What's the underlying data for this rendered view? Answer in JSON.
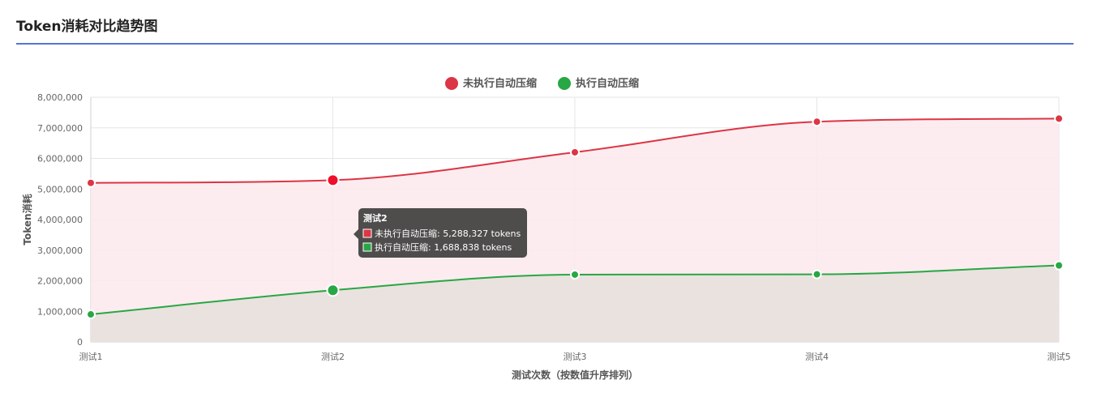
{
  "page_title": "Token消耗对比趋势图",
  "chart_data": {
    "type": "line",
    "categories": [
      "测试1",
      "测试2",
      "测试3",
      "测试4",
      "测试5"
    ],
    "series": [
      {
        "name": "未执行自动压缩",
        "values": [
          5200000,
          5288327,
          6200000,
          7200000,
          7300000
        ],
        "color": "#dc3545",
        "fill": "#fbe9ec"
      },
      {
        "name": "执行自动压缩",
        "values": [
          900000,
          1688838,
          2200000,
          2210000,
          2500000
        ],
        "color": "#28a745",
        "fill": "#e6e1da"
      }
    ],
    "xlabel": "测试次数（按数值升序排列）",
    "ylabel": "Token消耗",
    "ylim": [
      0,
      8000000
    ],
    "y_ticks": [
      "0",
      "1,000,000",
      "2,000,000",
      "3,000,000",
      "4,000,000",
      "5,000,000",
      "6,000,000",
      "7,000,000",
      "8,000,000"
    ],
    "grid": true,
    "legend_position": "top-center",
    "tooltip": {
      "category_index": 1,
      "title": "测试2",
      "lines": [
        "未执行自动压缩: 5,288,327 tokens",
        "执行自动压缩: 1,688,838 tokens"
      ]
    }
  }
}
